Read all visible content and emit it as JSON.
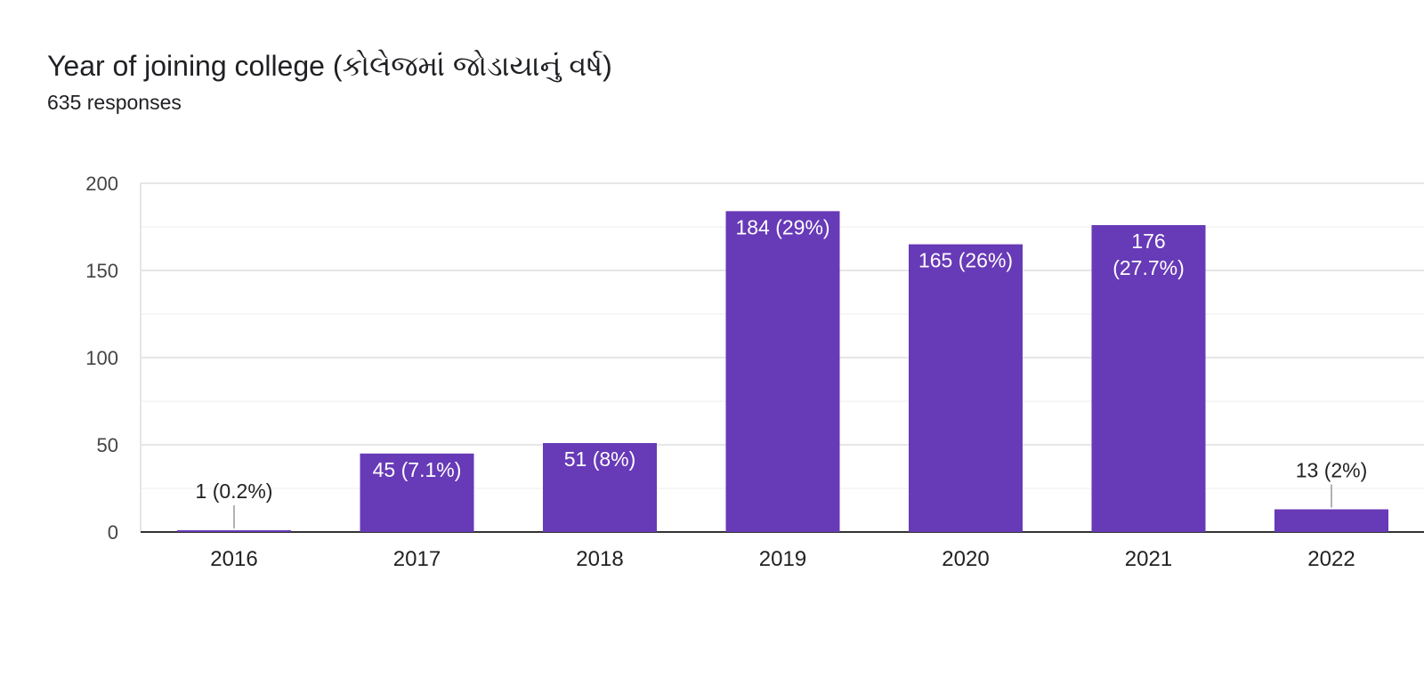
{
  "chart_data": {
    "type": "bar",
    "title": "Year of joining college (કોલેજમાં જોડાયાનું વર્ષ)",
    "subtitle": "635 responses",
    "categories": [
      "2016",
      "2017",
      "2018",
      "2019",
      "2020",
      "2021",
      "2022"
    ],
    "values": [
      1,
      45,
      51,
      184,
      165,
      176,
      13
    ],
    "data_labels": [
      [
        "1 (0.2%)"
      ],
      [
        "45 (7.1%)"
      ],
      [
        "51 (8%)"
      ],
      [
        "184 (29%)"
      ],
      [
        "165 (26%)"
      ],
      [
        "176",
        "(27.7%)"
      ],
      [
        "13 (2%)"
      ]
    ],
    "ylim": [
      0,
      200
    ],
    "yticks": [
      0,
      50,
      100,
      150,
      200
    ],
    "grid": true,
    "bar_color": "#673ab7",
    "xlabel": "",
    "ylabel": ""
  }
}
